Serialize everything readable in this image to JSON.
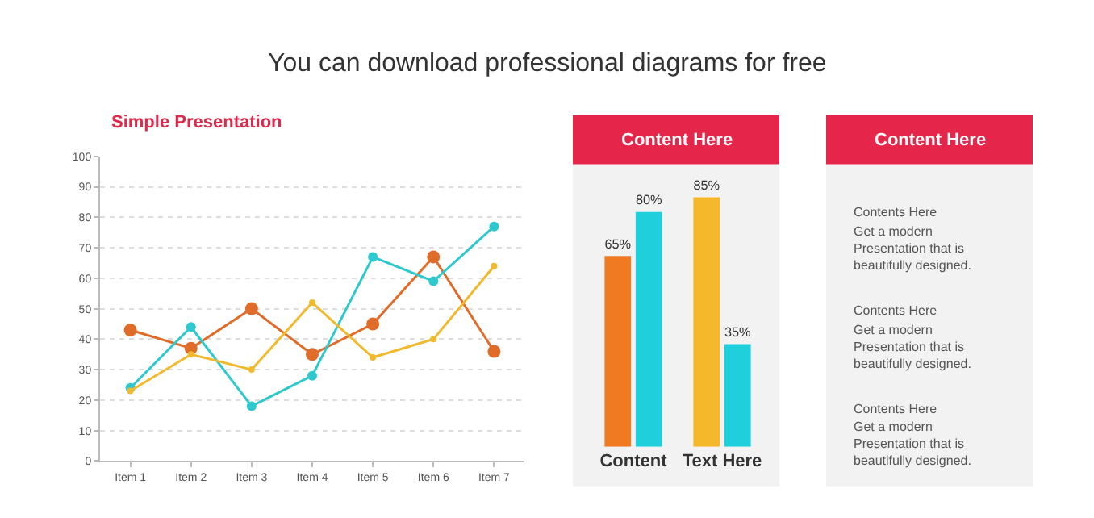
{
  "chart_data": [
    {
      "type": "line",
      "subtitle": "You can download professional diagrams for free",
      "title": "Simple Presentation",
      "categories": [
        "Item 1",
        "Item 2",
        "Item 3",
        "Item 4",
        "Item 5",
        "Item 6",
        "Item 7"
      ],
      "series": [
        {
          "color": "#e06c2a",
          "values": [
            43,
            37,
            50,
            35,
            45,
            67,
            36
          ]
        },
        {
          "color": "#2ec8cf",
          "values": [
            24,
            44,
            18,
            28,
            67,
            59,
            77
          ]
        },
        {
          "color": "#f0b92e",
          "values": [
            23,
            35,
            30,
            52,
            34,
            40,
            64
          ]
        }
      ],
      "ylim": [
        0,
        100
      ],
      "yticks": [
        0,
        10,
        20,
        30,
        40,
        50,
        60,
        70,
        80,
        90,
        100
      ],
      "grid": "y",
      "marker": "circle",
      "line_style": "solid"
    },
    {
      "type": "bar",
      "title": "Content Here",
      "categories": [
        "Content",
        "Text Here"
      ],
      "series": [
        {
          "colors": [
            "#f07a22",
            "#f5b82a"
          ],
          "values": [
            65,
            85
          ],
          "value_labels": [
            "65%",
            "85%"
          ]
        },
        {
          "color": "#1fd0dc",
          "values": [
            80,
            35
          ],
          "value_labels": [
            "80%",
            "35%"
          ]
        }
      ]
    },
    {
      "type": "other",
      "title": "Content Here",
      "annotations": [
        "Contents Here",
        "Get a modern Presentation that is beautifully designed.",
        "Contents Here",
        "Get a modern Presentation that is beautifully designed.",
        "Contents Here",
        "Get a modern Presentation that is beautifully designed."
      ]
    }
  ]
}
